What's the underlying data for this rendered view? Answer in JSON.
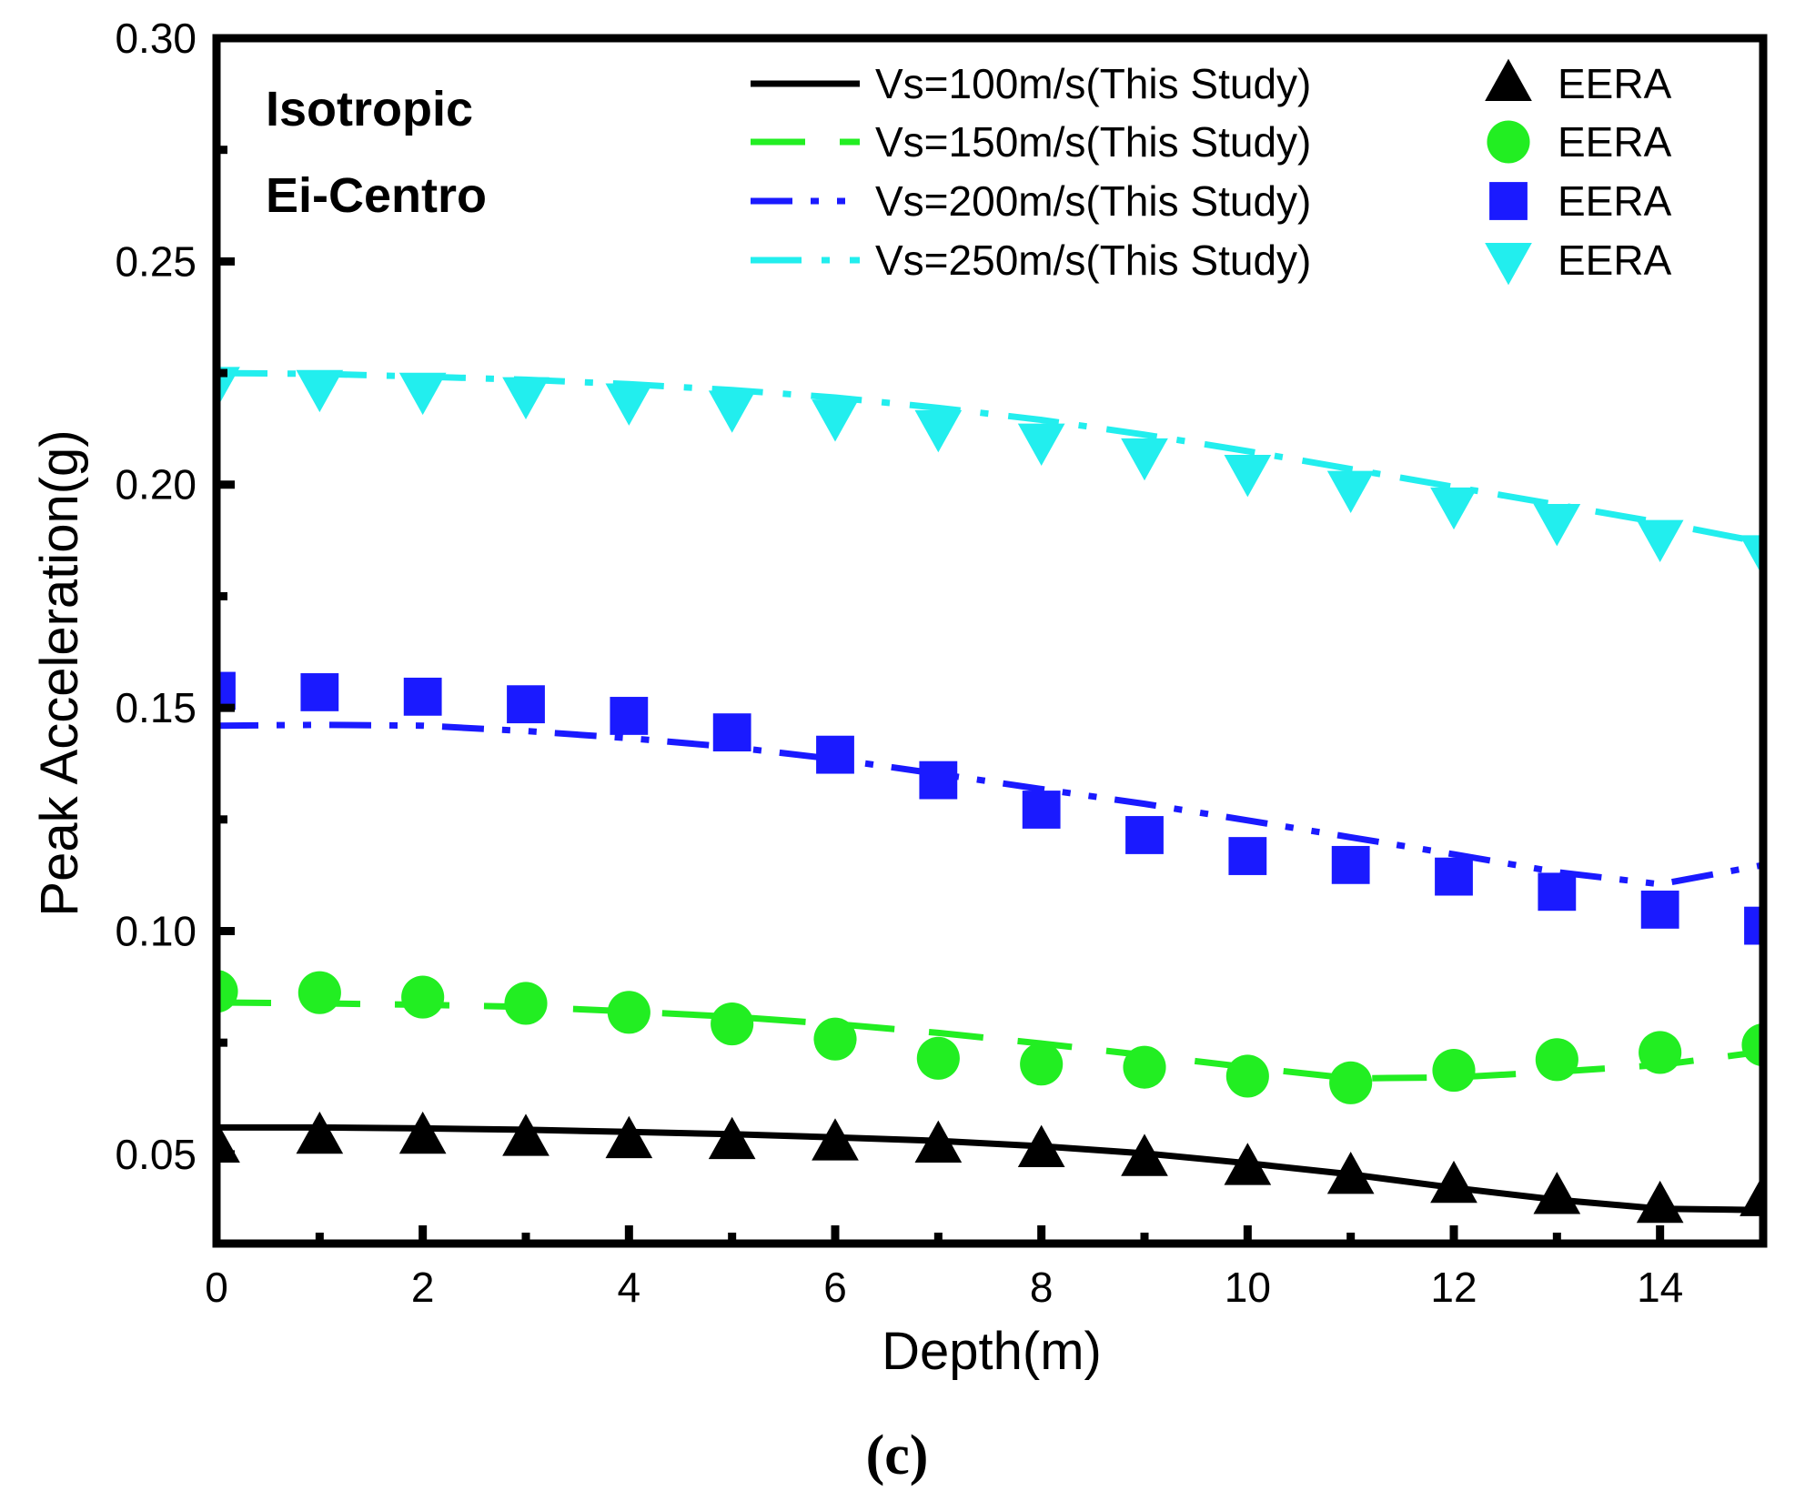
{
  "chart_data": {
    "type": "line",
    "title": "",
    "xlabel": "Depth(m)",
    "ylabel": "Peak Acceleration(g)",
    "xlim": [
      0,
      15
    ],
    "ylim": [
      0.03,
      0.3
    ],
    "x_ticks": [
      0,
      2,
      4,
      6,
      8,
      10,
      12,
      14
    ],
    "x_tick_labels": [
      "0",
      "2",
      "4",
      "6",
      "8",
      "10",
      "12",
      "14"
    ],
    "y_ticks": [
      0.05,
      0.1,
      0.15,
      0.2,
      0.25,
      0.3
    ],
    "y_tick_labels": [
      "0.05",
      "0.10",
      "0.15",
      "0.20",
      "0.25",
      "0.30"
    ],
    "grid": false,
    "legend_position": "top-right",
    "annotations": [
      "Isotropic",
      "Ei-Centro"
    ],
    "panel_label": "(c)",
    "series": [
      {
        "name": "Vs=100m/s(This Study)",
        "kind": "line",
        "style": "solid",
        "color": "#000000",
        "x": [
          0,
          1,
          2,
          3,
          4,
          5,
          6,
          7,
          8,
          9,
          10,
          11,
          12,
          13,
          14,
          15
        ],
        "values": [
          0.056,
          0.056,
          0.0558,
          0.0555,
          0.055,
          0.0545,
          0.0538,
          0.053,
          0.0518,
          0.0502,
          0.048,
          0.0455,
          0.0425,
          0.0398,
          0.0378,
          0.0375
        ]
      },
      {
        "name": "Vs=150m/s(This Study)",
        "kind": "line",
        "style": "dashed",
        "color": "#22ee22",
        "x": [
          0,
          1,
          2,
          3,
          4,
          5,
          6,
          7,
          8,
          9,
          10,
          11,
          12,
          13,
          14,
          15
        ],
        "values": [
          0.084,
          0.0838,
          0.0835,
          0.083,
          0.082,
          0.0808,
          0.0792,
          0.0772,
          0.0748,
          0.0722,
          0.0695,
          0.067,
          0.0672,
          0.0685,
          0.07,
          0.073
        ]
      },
      {
        "name": "Vs=200m/s(This Study)",
        "kind": "line",
        "style": "dash-dot-dot",
        "color": "#1a1aff",
        "x": [
          0,
          1,
          2,
          3,
          4,
          5,
          6,
          7,
          8,
          9,
          10,
          11,
          12,
          13,
          14,
          15
        ],
        "values": [
          0.146,
          0.1462,
          0.146,
          0.1448,
          0.1432,
          0.1412,
          0.1385,
          0.1352,
          0.1318,
          0.1285,
          0.1248,
          0.121,
          0.1172,
          0.1132,
          0.1105,
          0.1148
        ]
      },
      {
        "name": "Vs=250m/s(This Study)",
        "kind": "line",
        "style": "dash-dot",
        "color": "#22eeee",
        "x": [
          0,
          1,
          2,
          3,
          4,
          5,
          6,
          7,
          8,
          9,
          10,
          11,
          12,
          13,
          14,
          15
        ],
        "values": [
          0.225,
          0.2248,
          0.2242,
          0.2235,
          0.2225,
          0.2212,
          0.2195,
          0.2172,
          0.2145,
          0.2112,
          0.2075,
          0.2035,
          0.1995,
          0.1955,
          0.1915,
          0.187
        ]
      },
      {
        "name": "EERA",
        "kind": "scatter",
        "marker": "triangle-up",
        "color": "#000000",
        "x": [
          0,
          1,
          2,
          3,
          4,
          5,
          6,
          7,
          8,
          9,
          10,
          11,
          12,
          13,
          14,
          15
        ],
        "values": [
          0.052,
          0.054,
          0.054,
          0.0535,
          0.053,
          0.0528,
          0.0525,
          0.052,
          0.051,
          0.049,
          0.047,
          0.045,
          0.043,
          0.0405,
          0.0385,
          0.04
        ]
      },
      {
        "name": "EERA",
        "kind": "scatter",
        "marker": "circle",
        "color": "#22ee22",
        "x": [
          0,
          1,
          2,
          3,
          4,
          5,
          6,
          7,
          8,
          9,
          10,
          11,
          12,
          13,
          14,
          15
        ],
        "values": [
          0.0865,
          0.0862,
          0.0852,
          0.0838,
          0.0818,
          0.0792,
          0.0758,
          0.0715,
          0.0702,
          0.0695,
          0.0675,
          0.066,
          0.0688,
          0.0712,
          0.0728,
          0.0745
        ]
      },
      {
        "name": "EERA",
        "kind": "scatter",
        "marker": "square",
        "color": "#1a1aff",
        "x": [
          0,
          1,
          2,
          3,
          4,
          5,
          6,
          7,
          8,
          9,
          10,
          11,
          12,
          13,
          14,
          15
        ],
        "values": [
          0.1538,
          0.1535,
          0.1525,
          0.1508,
          0.1482,
          0.1445,
          0.1395,
          0.1338,
          0.1272,
          0.1215,
          0.1168,
          0.1148,
          0.1122,
          0.1088,
          0.1048,
          0.1012
        ]
      },
      {
        "name": "EERA",
        "kind": "scatter",
        "marker": "triangle-down",
        "color": "#22eeee",
        "x": [
          0,
          1,
          2,
          3,
          4,
          5,
          6,
          7,
          8,
          9,
          10,
          11,
          12,
          13,
          14,
          15
        ],
        "values": [
          0.2225,
          0.2218,
          0.2212,
          0.2202,
          0.2188,
          0.2172,
          0.2152,
          0.2128,
          0.2098,
          0.2065,
          0.2028,
          0.1992,
          0.1955,
          0.1918,
          0.1882,
          0.1848
        ]
      }
    ]
  }
}
